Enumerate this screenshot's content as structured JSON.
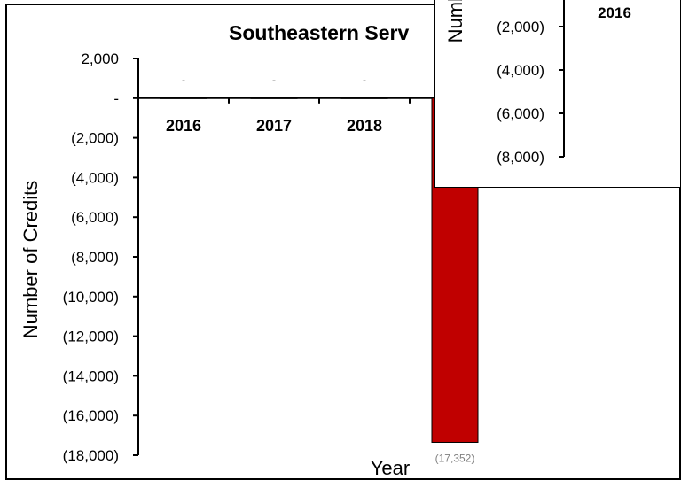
{
  "chart_data": [
    {
      "type": "bar",
      "title": "Southeastern Serv",
      "xlabel": "Year",
      "ylabel": "Number of Credits",
      "categories": [
        "2016",
        "2017",
        "2018",
        ""
      ],
      "values": [
        0,
        0,
        0,
        -17352
      ],
      "point_labels": [
        "-",
        "-",
        "-",
        "(17,352)"
      ],
      "y_ticks": [
        {
          "value": 2000,
          "label": "2,000"
        },
        {
          "value": 0,
          "label": "-"
        },
        {
          "value": -2000,
          "label": "(2,000)"
        },
        {
          "value": -4000,
          "label": "(4,000)"
        },
        {
          "value": -6000,
          "label": "(6,000)"
        },
        {
          "value": -8000,
          "label": "(8,000)"
        },
        {
          "value": -10000,
          "label": "(10,000)"
        },
        {
          "value": -12000,
          "label": "(12,000)"
        },
        {
          "value": -14000,
          "label": "(14,000)"
        },
        {
          "value": -16000,
          "label": "(16,000)"
        },
        {
          "value": -18000,
          "label": "(18,000)"
        }
      ],
      "ylim": [
        -18000,
        2000
      ],
      "grid": false,
      "bar_color": "#c00000"
    },
    {
      "type": "bar",
      "title": "",
      "xlabel": "",
      "ylabel": "Numb",
      "categories": [
        "2016"
      ],
      "values": [
        0
      ],
      "y_ticks": [
        {
          "value": -2000,
          "label": "(2,000)"
        },
        {
          "value": -4000,
          "label": "(4,000)"
        },
        {
          "value": -6000,
          "label": "(6,000)"
        },
        {
          "value": -8000,
          "label": "(8,000)"
        }
      ],
      "ylim": [
        -8000,
        0
      ],
      "grid": false
    }
  ]
}
